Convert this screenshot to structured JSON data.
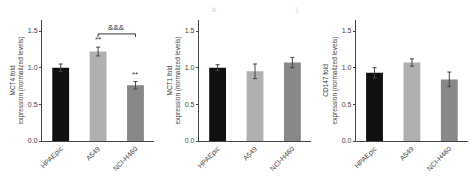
{
  "title": "b                                         )",
  "chart_data": [
    {
      "type": "bar",
      "ylabel": "MCT4 fold\nexpression (normalized levels)",
      "categories": [
        "HPAEpic",
        "A549",
        "NCI-H460"
      ],
      "values": [
        1.0,
        1.22,
        0.76
      ],
      "errors": [
        0.05,
        0.06,
        0.05
      ],
      "colors": [
        "#111111",
        "#b0b0b0",
        "#888888"
      ],
      "ylim": [
        0,
        1.65
      ],
      "yticks": [
        {
          "value": 0,
          "label": "0.0"
        },
        0.5,
        {
          "value": 1,
          "label": "1.0"
        },
        1.5
      ],
      "grid": false,
      "annotations": [
        {
          "bar": 1,
          "text": "**",
          "y": 1.295
        },
        {
          "bar": 2,
          "text": "**",
          "y": 0.825
        }
      ],
      "bracket": {
        "from": 1,
        "to": 2,
        "y": 1.46,
        "text": "&&&"
      }
    },
    {
      "type": "bar",
      "ylabel": "MCT1 fold\nexpression (normalized levels)",
      "categories": [
        "HPAEpic",
        "A549",
        "NCI-H460"
      ],
      "values": [
        1.0,
        0.95,
        1.07
      ],
      "errors": [
        0.04,
        0.1,
        0.07
      ],
      "colors": [
        "#111111",
        "#b0b0b0",
        "#888888"
      ],
      "ylim": [
        0,
        1.65
      ],
      "yticks": [
        {
          "value": 0,
          "label": "0.0"
        },
        0.5,
        {
          "value": 1,
          "label": "1.0"
        },
        1.5
      ],
      "grid": false,
      "annotations": []
    },
    {
      "type": "bar",
      "ylabel": "CD147 fold\nexpression (normalized levels)",
      "categories": [
        "HPAEpic",
        "A549",
        "NCI-H460"
      ],
      "values": [
        0.93,
        1.07,
        0.84
      ],
      "errors": [
        0.07,
        0.05,
        0.1
      ],
      "colors": [
        "#111111",
        "#b0b0b0",
        "#888888"
      ],
      "ylim": [
        0,
        1.65
      ],
      "yticks": [
        {
          "value": 0,
          "label": "0.0"
        },
        0.5,
        {
          "value": 1,
          "label": "1.0"
        },
        1.5
      ],
      "grid": false,
      "annotations": []
    }
  ]
}
